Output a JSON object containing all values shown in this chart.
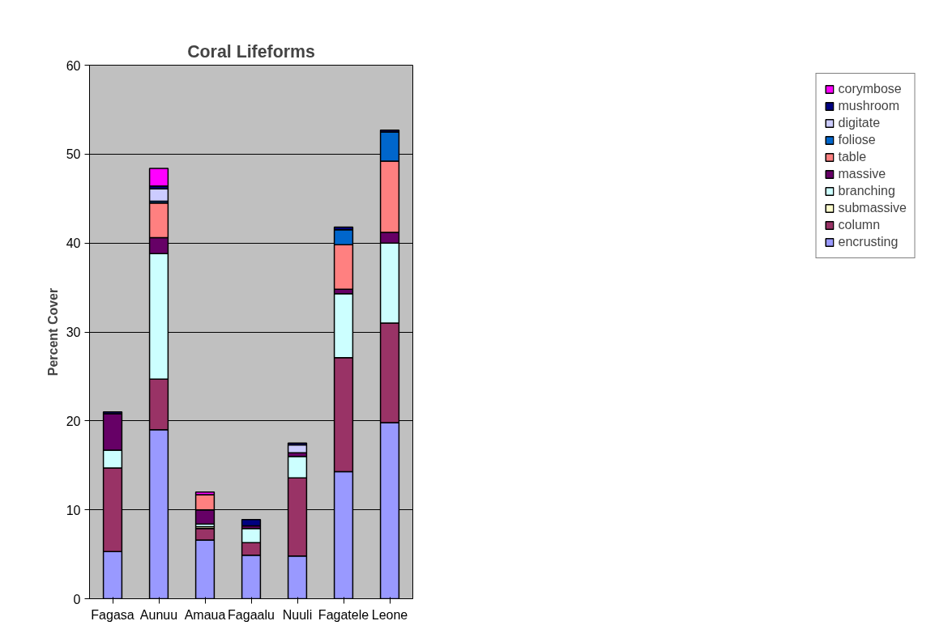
{
  "chart_data": {
    "type": "bar",
    "stacked": true,
    "title": "Coral Lifeforms",
    "ylabel": "Percent Cover",
    "categories": [
      "Fagasa",
      "Aunuu",
      "Amaua",
      "Fagaalu",
      "Nuuli",
      "Fagatele",
      "Leone"
    ],
    "ylim": [
      0,
      60
    ],
    "yticks": [
      0,
      10,
      20,
      30,
      40,
      50,
      60
    ],
    "grid": "y",
    "legend": "right",
    "series": [
      {
        "name": "encrusting",
        "color": "#9999ff",
        "values": [
          5.3,
          19.0,
          6.6,
          4.9,
          4.8,
          14.3,
          19.8
        ]
      },
      {
        "name": "column",
        "color": "#993366",
        "values": [
          9.4,
          5.7,
          1.3,
          1.4,
          8.8,
          12.8,
          11.2
        ]
      },
      {
        "name": "submassive",
        "color": "#ffffcc",
        "values": [
          null,
          null,
          0.2,
          null,
          null,
          null,
          null
        ]
      },
      {
        "name": "branching",
        "color": "#ccffff",
        "values": [
          2.0,
          14.1,
          0.3,
          1.6,
          2.4,
          7.2,
          9.0
        ]
      },
      {
        "name": "massive",
        "color": "#660066",
        "values": [
          4.1,
          1.8,
          1.6,
          0.3,
          0.4,
          0.5,
          1.2
        ]
      },
      {
        "name": "table",
        "color": "#ff8080",
        "values": [
          null,
          3.9,
          1.7,
          null,
          null,
          5.0,
          8.0
        ]
      },
      {
        "name": "foliose",
        "color": "#0066cc",
        "values": [
          null,
          0.2,
          null,
          null,
          null,
          1.7,
          3.3
        ]
      },
      {
        "name": "digitate",
        "color": "#ccccff",
        "values": [
          null,
          1.4,
          null,
          null,
          0.9,
          null,
          null
        ]
      },
      {
        "name": "mushroom",
        "color": "#000080",
        "values": [
          0.2,
          0.3,
          null,
          0.7,
          0.2,
          0.3,
          0.2
        ]
      },
      {
        "name": "corymbose",
        "color": "#ff00ff",
        "values": [
          null,
          2.0,
          0.3,
          null,
          null,
          null,
          null
        ]
      }
    ]
  }
}
